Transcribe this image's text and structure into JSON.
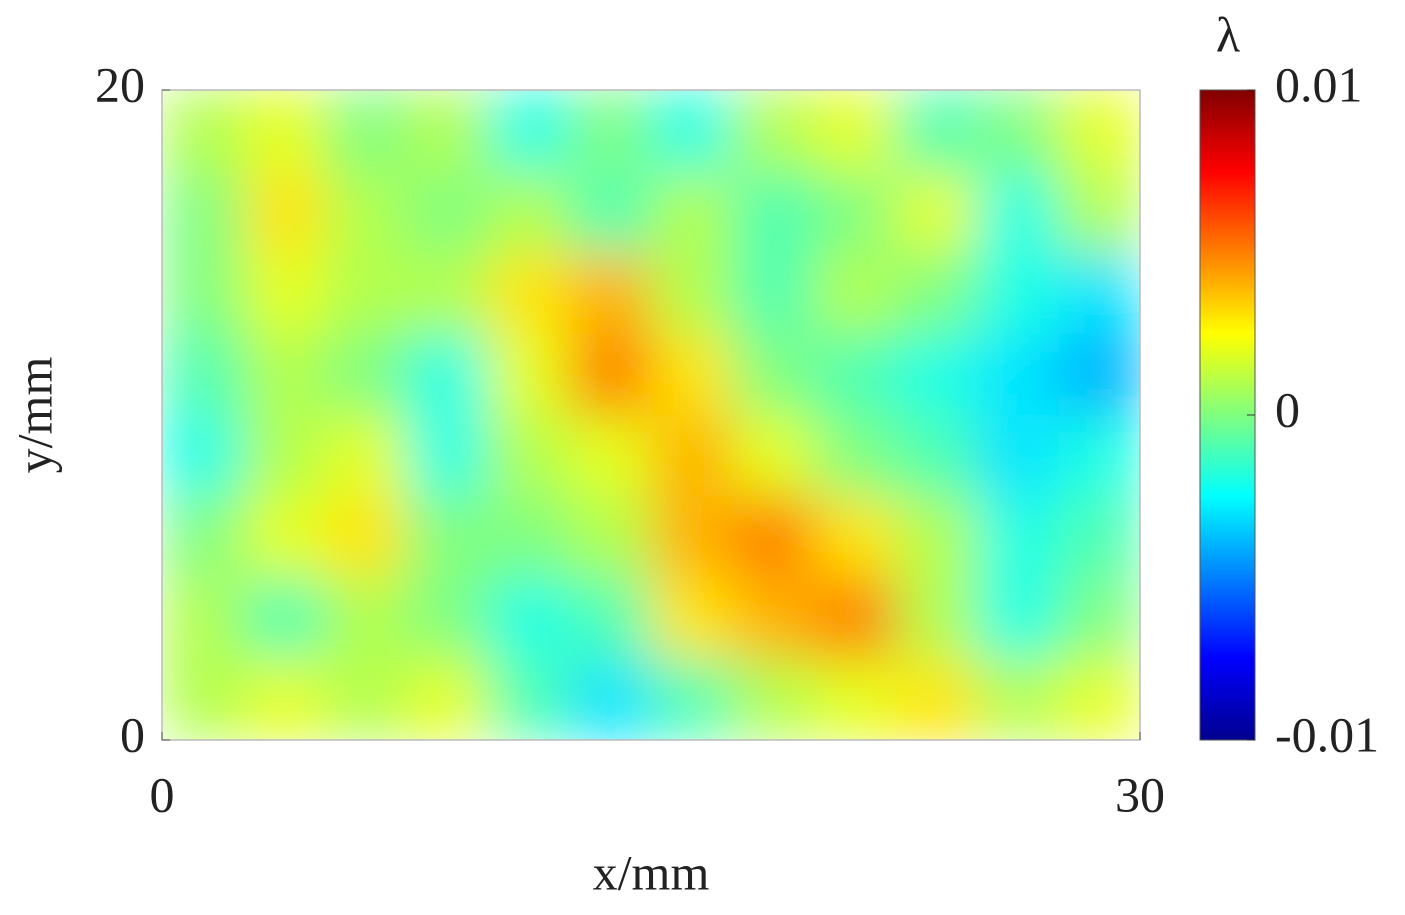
{
  "chart_data": {
    "type": "heatmap",
    "xlabel": "x/mm",
    "ylabel": "y/mm",
    "colorbar_label": "λ",
    "colormap": "jet",
    "xlim": [
      0,
      30
    ],
    "ylim": [
      0,
      20
    ],
    "xticks": [
      0,
      30
    ],
    "yticks": [
      0,
      20
    ],
    "clim": [
      -0.01,
      0.01
    ],
    "cticks": [
      {
        "value": 0.01,
        "label": "0.01"
      },
      0,
      {
        "value": -0.01,
        "label": "-0.01"
      }
    ],
    "x": [
      1.25,
      3.75,
      6.25,
      8.75,
      11.25,
      13.75,
      16.25,
      18.75,
      21.25,
      23.75,
      26.25,
      28.75
    ],
    "y": [
      18.75,
      16.25,
      13.75,
      11.25,
      8.75,
      6.25,
      3.75,
      1.25
    ],
    "values": [
      [
        0.001,
        0.002,
        0.0,
        0.001,
        -0.002,
        0.0,
        -0.002,
        0.001,
        0.002,
        -0.001,
        0.0,
        0.002
      ],
      [
        0.0,
        0.003,
        0.001,
        0.0,
        0.001,
        -0.001,
        0.001,
        -0.001,
        0.0,
        0.002,
        -0.002,
        0.001
      ],
      [
        0.0,
        0.002,
        0.001,
        0.001,
        0.003,
        0.004,
        0.001,
        -0.001,
        0.001,
        0.0,
        -0.002,
        -0.003
      ],
      [
        -0.001,
        0.001,
        0.0,
        -0.002,
        0.002,
        0.005,
        0.003,
        0.0,
        -0.001,
        -0.002,
        -0.003,
        -0.004
      ],
      [
        -0.002,
        0.001,
        0.002,
        -0.002,
        0.001,
        0.002,
        0.004,
        0.002,
        0.0,
        -0.001,
        -0.003,
        -0.002
      ],
      [
        0.0,
        0.002,
        0.003,
        0.0,
        0.0,
        0.001,
        0.004,
        0.005,
        0.003,
        0.001,
        -0.002,
        -0.001
      ],
      [
        0.001,
        -0.001,
        0.001,
        0.0,
        -0.002,
        -0.001,
        0.003,
        0.004,
        0.005,
        0.001,
        -0.002,
        0.0
      ],
      [
        0.001,
        0.002,
        0.001,
        0.002,
        -0.001,
        -0.003,
        -0.001,
        0.001,
        0.002,
        0.003,
        0.001,
        0.002
      ]
    ]
  }
}
